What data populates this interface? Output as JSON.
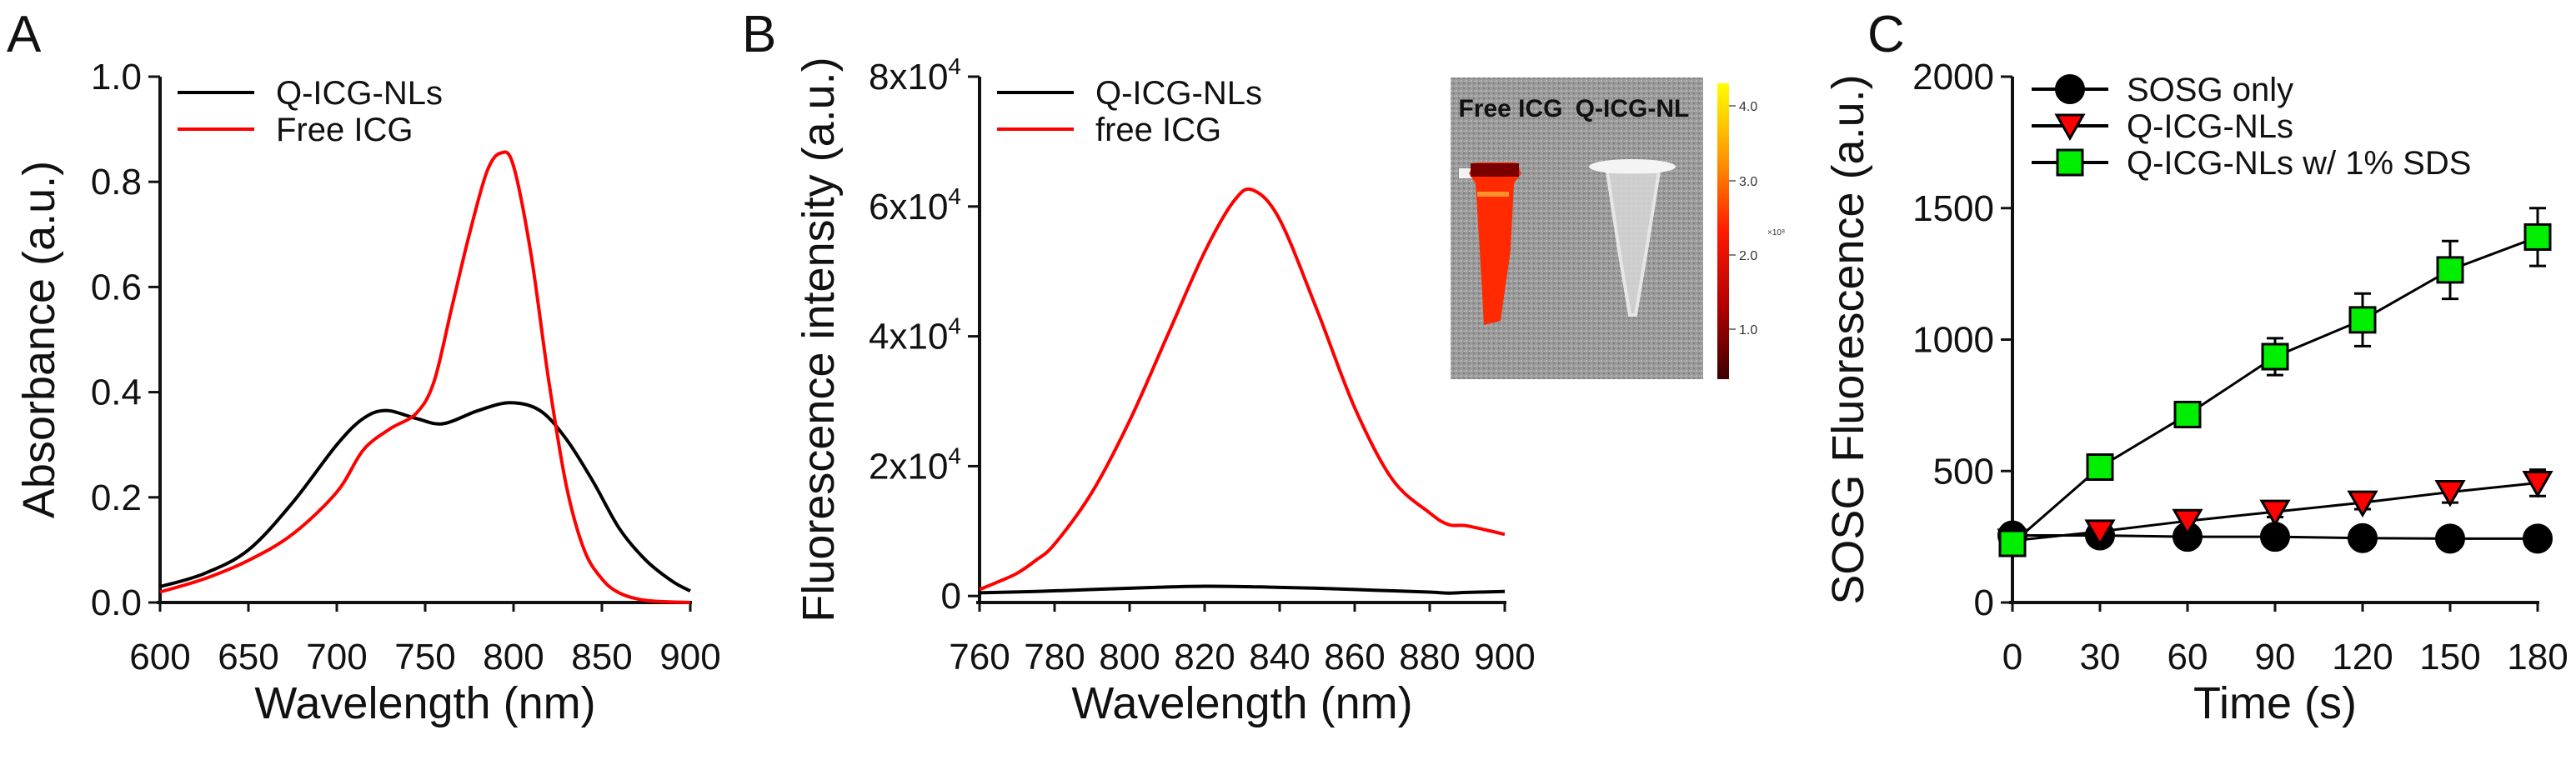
{
  "chart_data": [
    {
      "panel": "A",
      "type": "line",
      "xlabel": "Wavelength (nm)",
      "ylabel": "Absorbance (a.u.)",
      "xlim": [
        600,
        900
      ],
      "ylim": [
        0,
        1.0
      ],
      "xticks": [
        "600",
        "650",
        "700",
        "750",
        "800",
        "850",
        "900"
      ],
      "xtick_values": [
        600,
        650,
        700,
        750,
        800,
        850,
        900
      ],
      "yticks": [
        "0.0",
        "0.2",
        "0.4",
        "0.6",
        "0.8",
        "1.0"
      ],
      "ytick_values": [
        0,
        0.2,
        0.4,
        0.6,
        0.8,
        1.0
      ],
      "legend_position": "top-left",
      "series": [
        {
          "name": "Q-ICG-NLs",
          "color": "#000000",
          "x": [
            600,
            625,
            650,
            675,
            700,
            715,
            728,
            745,
            760,
            780,
            798,
            815,
            830,
            845,
            860,
            875,
            890,
            900
          ],
          "y": [
            0.03,
            0.055,
            0.1,
            0.19,
            0.3,
            0.35,
            0.365,
            0.35,
            0.34,
            0.365,
            0.38,
            0.365,
            0.31,
            0.23,
            0.14,
            0.08,
            0.04,
            0.022
          ]
        },
        {
          "name": "Free ICG",
          "color": "#ff0000",
          "x": [
            600,
            625,
            650,
            675,
            700,
            715,
            730,
            745,
            755,
            765,
            775,
            785,
            793,
            800,
            810,
            820,
            830,
            840,
            850,
            860,
            875,
            900
          ],
          "y": [
            0.02,
            0.045,
            0.08,
            0.13,
            0.21,
            0.29,
            0.33,
            0.36,
            0.42,
            0.56,
            0.7,
            0.82,
            0.855,
            0.83,
            0.66,
            0.42,
            0.22,
            0.1,
            0.045,
            0.018,
            0.004,
            0.0
          ]
        }
      ]
    },
    {
      "panel": "B",
      "type": "line",
      "xlabel": "Wavelength (nm)",
      "ylabel": "Fluorescence intensity (a.u.)",
      "xlim": [
        760,
        900
      ],
      "ylim": [
        -1000,
        80000
      ],
      "xticks": [
        "760",
        "780",
        "800",
        "820",
        "840",
        "860",
        "880",
        "900"
      ],
      "xtick_values": [
        760,
        780,
        800,
        820,
        840,
        860,
        880,
        900
      ],
      "yticks": [
        {
          "base": "0",
          "exp": ""
        },
        {
          "base": "2x10",
          "exp": "4"
        },
        {
          "base": "4x10",
          "exp": "4"
        },
        {
          "base": "6x10",
          "exp": "4"
        },
        {
          "base": "8x10",
          "exp": "4"
        }
      ],
      "ytick_values": [
        0,
        20000,
        40000,
        60000,
        80000
      ],
      "legend_position": "top-left",
      "series": [
        {
          "name": "Q-ICG-NLs",
          "color": "#000000",
          "x": [
            760,
            775,
            790,
            805,
            820,
            835,
            850,
            865,
            880,
            885,
            890,
            900
          ],
          "y": [
            500,
            700,
            1000,
            1300,
            1500,
            1400,
            1200,
            900,
            600,
            450,
            550,
            700
          ]
        },
        {
          "name": "free ICG",
          "color": "#ff0000",
          "x": [
            760,
            765,
            770,
            775,
            780,
            790,
            800,
            810,
            820,
            828,
            833,
            840,
            850,
            860,
            870,
            880,
            885,
            890,
            900
          ],
          "y": [
            1000,
            2200,
            3500,
            5500,
            8000,
            16000,
            27000,
            40000,
            53000,
            61000,
            62500,
            58000,
            44000,
            29000,
            18000,
            12800,
            11000,
            10800,
            9500
          ]
        }
      ],
      "inset": {
        "labels": [
          "Free ICG",
          "Q-ICG-NL"
        ],
        "colorbar_ticks": [
          "4.0",
          "3.0",
          "2.0",
          "1.0"
        ],
        "colorbar_unit": "×10⁸",
        "colorbar_colors": [
          "#ffff00",
          "#ff9900",
          "#ff1a00",
          "#b30000",
          "#3d0000"
        ]
      }
    },
    {
      "panel": "C",
      "type": "line",
      "xlabel": "Time (s)",
      "ylabel": "SOSG Fluorescence (a.u.)",
      "xlim": [
        0,
        180
      ],
      "ylim": [
        0,
        2000
      ],
      "xticks": [
        "0",
        "30",
        "60",
        "90",
        "120",
        "150",
        "180"
      ],
      "xtick_values": [
        0,
        30,
        60,
        90,
        120,
        150,
        180
      ],
      "yticks": [
        "0",
        "500",
        "1000",
        "1500",
        "2000"
      ],
      "ytick_values": [
        0,
        500,
        1000,
        1500,
        2000
      ],
      "legend_position": "top-left",
      "series": [
        {
          "name": "SOSG only",
          "marker": "circle",
          "color": "#000000",
          "x": [
            0,
            30,
            60,
            90,
            120,
            150,
            180
          ],
          "y": [
            255,
            255,
            250,
            250,
            245,
            243,
            243
          ],
          "err": [
            15,
            10,
            10,
            10,
            10,
            10,
            10
          ]
        },
        {
          "name": "Q-ICG-NLs",
          "marker": "triangle-down",
          "color": "#ff0000",
          "x": [
            0,
            30,
            60,
            90,
            120,
            150,
            180
          ],
          "y": [
            235,
            270,
            310,
            345,
            380,
            420,
            455
          ],
          "err": [
            15,
            15,
            20,
            20,
            25,
            40,
            50
          ]
        },
        {
          "name": "Q-ICG-NLs w/ 1% SDS",
          "marker": "square",
          "color": "#00ee00",
          "x": [
            0,
            30,
            60,
            90,
            120,
            150,
            180
          ],
          "y": [
            225,
            515,
            715,
            935,
            1075,
            1265,
            1390
          ],
          "err": [
            20,
            40,
            35,
            70,
            100,
            110,
            110
          ]
        }
      ]
    }
  ],
  "panel_labels": [
    "A",
    "B",
    "C"
  ]
}
